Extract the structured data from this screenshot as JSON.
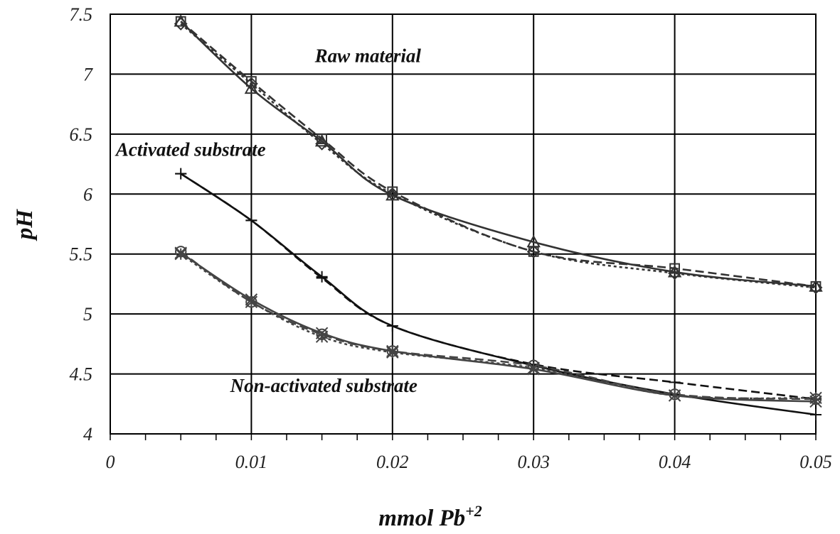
{
  "chart_data": {
    "type": "line",
    "title": "",
    "xlabel": "mmol Pb",
    "xlabel_sup": "+2",
    "ylabel": "pH",
    "xlim": [
      0,
      0.05
    ],
    "ylim": [
      4,
      7.5
    ],
    "x_ticks": [
      "0",
      "0.01",
      "0.02",
      "0.03",
      "0.04",
      "0.05"
    ],
    "y_ticks": [
      "4",
      "4.5",
      "5",
      "5.5",
      "6",
      "6.5",
      "7",
      "7.5"
    ],
    "grid": true,
    "annotations": [
      {
        "text": "Raw material",
        "x": 0.0145,
        "y": 7.1
      },
      {
        "text": "Activated substrate",
        "x": 0.0004,
        "y": 6.32
      },
      {
        "text": "Non-activated substrate",
        "x": 0.0085,
        "y": 4.35
      }
    ],
    "series": [
      {
        "group": "raw",
        "style": "solid",
        "marker": "triangle",
        "color": "#333333",
        "x": [
          0.005,
          0.01,
          0.015,
          0.02,
          0.03,
          0.04,
          0.05
        ],
        "y": [
          7.44,
          6.88,
          6.44,
          5.99,
          5.6,
          5.35,
          5.23
        ]
      },
      {
        "group": "raw",
        "style": "dashed",
        "marker": "square",
        "color": "#333333",
        "x": [
          0.005,
          0.01,
          0.015,
          0.02,
          0.03,
          0.04,
          0.05
        ],
        "y": [
          7.44,
          6.94,
          6.46,
          6.02,
          5.52,
          5.38,
          5.23
        ]
      },
      {
        "group": "raw",
        "style": "dotted",
        "marker": "diamond",
        "color": "#333333",
        "x": [
          0.005,
          0.01,
          0.015,
          0.02,
          0.03,
          0.04,
          0.05
        ],
        "y": [
          7.42,
          6.92,
          6.42,
          6.0,
          5.52,
          5.34,
          5.22
        ]
      },
      {
        "group": "activated",
        "style": "solid",
        "marker": "plus",
        "color": "#111111",
        "x": [
          0.005,
          0.01,
          0.015,
          0.02,
          0.03,
          0.04,
          0.05
        ],
        "y": [
          6.17,
          5.78,
          5.31,
          4.9,
          4.57,
          4.33,
          4.16
        ]
      },
      {
        "group": "activated",
        "style": "dashed",
        "marker": "dash",
        "color": "#111111",
        "x": [
          0.005,
          0.01,
          0.015,
          0.02,
          0.03,
          0.04,
          0.05
        ],
        "y": [
          6.17,
          5.78,
          5.3,
          4.9,
          4.58,
          4.43,
          4.29
        ]
      },
      {
        "group": "non-activated",
        "style": "solid",
        "marker": "x",
        "color": "#444444",
        "x": [
          0.005,
          0.01,
          0.015,
          0.02,
          0.03,
          0.04,
          0.05
        ],
        "y": [
          5.51,
          5.12,
          4.84,
          4.69,
          4.54,
          4.32,
          4.27
        ]
      },
      {
        "group": "non-activated",
        "style": "dashed",
        "marker": "circle",
        "color": "#444444",
        "x": [
          0.005,
          0.01,
          0.015,
          0.02,
          0.03,
          0.04,
          0.05
        ],
        "y": [
          5.52,
          5.1,
          4.83,
          4.69,
          4.57,
          4.33,
          4.29
        ]
      },
      {
        "group": "non-activated",
        "style": "dotted",
        "marker": "star",
        "color": "#444444",
        "x": [
          0.005,
          0.01,
          0.015,
          0.02,
          0.03,
          0.04,
          0.05
        ],
        "y": [
          5.5,
          5.1,
          4.81,
          4.68,
          4.55,
          4.32,
          4.3
        ]
      }
    ]
  }
}
